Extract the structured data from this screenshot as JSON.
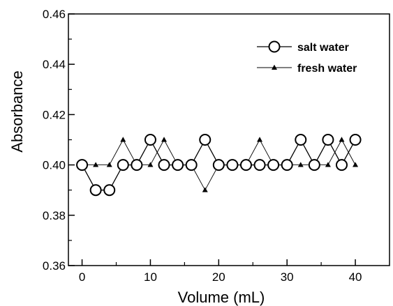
{
  "chart_data": {
    "type": "line",
    "title": "",
    "xlabel": "Volume (mL)",
    "ylabel": "Absorbance",
    "xlim": [
      -2,
      45
    ],
    "ylim": [
      0.36,
      0.46
    ],
    "xticks": [
      0,
      10,
      20,
      30,
      40
    ],
    "xtick_labels": [
      "0",
      "10",
      "20",
      "30",
      "40"
    ],
    "yticks": [
      0.36,
      0.38,
      0.4,
      0.42,
      0.44,
      0.46
    ],
    "ytick_labels": [
      "0.36",
      "0.38",
      "0.40",
      "0.42",
      "0.44",
      "0.46"
    ],
    "grid": false,
    "legend_position": "top-right",
    "x": [
      0,
      2,
      4,
      6,
      8,
      10,
      12,
      14,
      16,
      18,
      20,
      22,
      24,
      26,
      28,
      30,
      32,
      34,
      36,
      38,
      40
    ],
    "series": [
      {
        "name": "salt water",
        "marker": "open-circle",
        "values": [
          0.4,
          0.39,
          0.39,
          0.4,
          0.4,
          0.41,
          0.4,
          0.4,
          0.4,
          0.41,
          0.4,
          0.4,
          0.4,
          0.4,
          0.4,
          0.4,
          0.41,
          0.4,
          0.41,
          0.4,
          0.41
        ]
      },
      {
        "name": "fresh water",
        "marker": "filled-triangle",
        "values": [
          0.4,
          0.4,
          0.4,
          0.41,
          0.4,
          0.4,
          0.41,
          0.4,
          0.4,
          0.39,
          0.4,
          0.4,
          0.4,
          0.41,
          0.4,
          0.4,
          0.4,
          0.4,
          0.4,
          0.41,
          0.4
        ]
      }
    ],
    "colors": {
      "line": "#000000",
      "marker_fill": "#ffffff",
      "axis": "#000000"
    }
  }
}
